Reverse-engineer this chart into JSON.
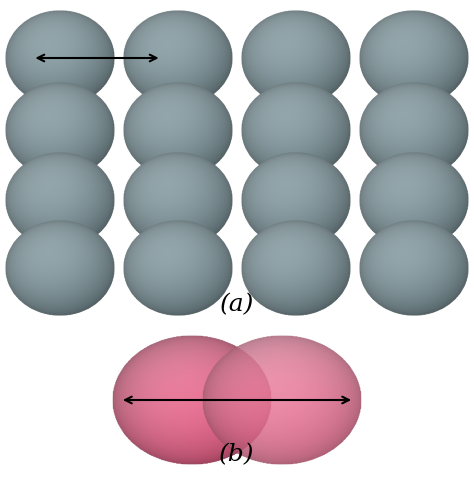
{
  "background_color": "#ffffff",
  "gray_base": [
    100,
    120,
    125
  ],
  "gray_light": [
    180,
    200,
    205
  ],
  "gray_dark": [
    65,
    80,
    85
  ],
  "pink_base": [
    220,
    80,
    120
  ],
  "pink_light": [
    245,
    160,
    185
  ],
  "pink_dark": [
    180,
    40,
    80
  ],
  "grid_rows": 4,
  "grid_cols": 4,
  "label_a": "(a)",
  "label_b": "(b)",
  "label_fontsize": 18,
  "arrow_color": "#000000"
}
